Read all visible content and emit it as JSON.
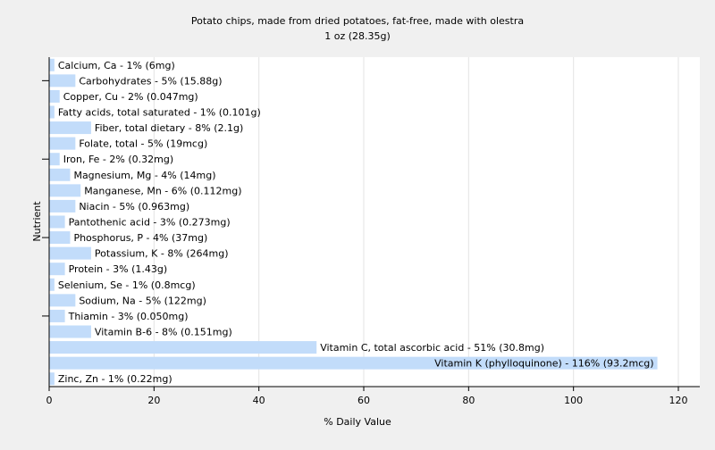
{
  "chart_data": {
    "type": "bar",
    "orientation": "horizontal",
    "title": "Potato chips, made from dried potatoes, fat-free, made with olestra",
    "subtitle": "1 oz (28.35g)",
    "xlabel": "% Daily Value",
    "ylabel": "Nutrient",
    "xlim": [
      0,
      120
    ],
    "xticks": [
      0,
      20,
      40,
      60,
      80,
      100,
      120
    ],
    "grid": true,
    "bar_color": "#c2dcfa",
    "categories": [
      "Calcium, Ca",
      "Carbohydrates",
      "Copper, Cu",
      "Fatty acids, total saturated",
      "Fiber, total dietary",
      "Folate, total",
      "Iron, Fe",
      "Magnesium, Mg",
      "Manganese, Mn",
      "Niacin",
      "Pantothenic acid",
      "Phosphorus, P",
      "Potassium, K",
      "Protein",
      "Selenium, Se",
      "Sodium, Na",
      "Thiamin",
      "Vitamin B-6",
      "Vitamin C, total ascorbic acid",
      "Vitamin K (phylloquinone)",
      "Zinc, Zn"
    ],
    "values": [
      1,
      5,
      2,
      1,
      8,
      5,
      2,
      4,
      6,
      5,
      3,
      4,
      8,
      3,
      1,
      5,
      3,
      8,
      51,
      116,
      1
    ],
    "labels": [
      "Calcium, Ca - 1% (6mg)",
      "Carbohydrates - 5% (15.88g)",
      "Copper, Cu - 2% (0.047mg)",
      "Fatty acids, total saturated - 1% (0.101g)",
      "Fiber, total dietary - 8% (2.1g)",
      "Folate, total - 5% (19mcg)",
      "Iron, Fe - 2% (0.32mg)",
      "Magnesium, Mg - 4% (14mg)",
      "Manganese, Mn - 6% (0.112mg)",
      "Niacin - 5% (0.963mg)",
      "Pantothenic acid - 3% (0.273mg)",
      "Phosphorus, P - 4% (37mg)",
      "Potassium, K - 8% (264mg)",
      "Protein - 3% (1.43g)",
      "Selenium, Se - 1% (0.8mcg)",
      "Sodium, Na - 5% (122mg)",
      "Thiamin - 3% (0.050mg)",
      "Vitamin B-6 - 8% (0.151mg)",
      "Vitamin C, total ascorbic acid - 51% (30.8mg)",
      "Vitamin K (phylloquinone) - 116% (93.2mcg)",
      "Zinc, Zn - 1% (0.22mg)"
    ]
  }
}
